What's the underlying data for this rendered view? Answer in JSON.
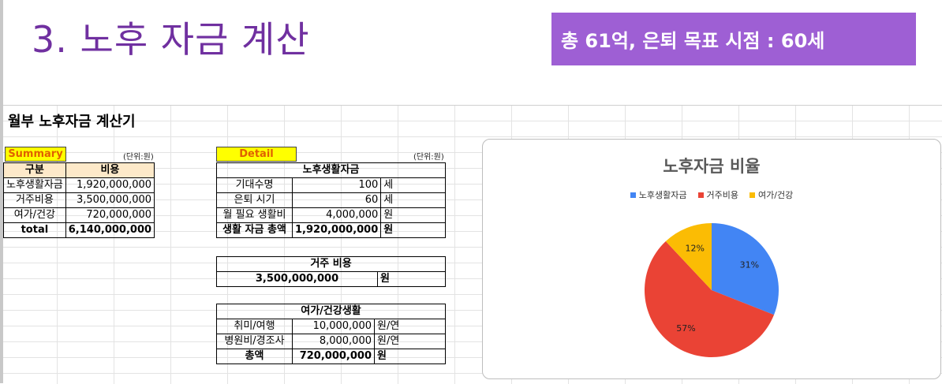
{
  "slide": {
    "title": "3. 노후 자금 계산",
    "banner": "총 61억, 은퇴 목표 시점  : 60세"
  },
  "sheet": {
    "title": "월부 노후자금 계산기"
  },
  "summary": {
    "label": "Summary",
    "unit": "(단위:원)",
    "headers": [
      "구분",
      "비용"
    ],
    "rows": [
      {
        "name": "노후생활자금",
        "value": "1,920,000,000"
      },
      {
        "name": "거주비용",
        "value": "3,500,000,000"
      },
      {
        "name": "여가/건강",
        "value": "720,000,000"
      }
    ],
    "total": {
      "name": "total",
      "value": "6,140,000,000"
    }
  },
  "detail": {
    "label": "Detail",
    "unit": "(단위:원)",
    "living": {
      "header": "노후생활자금",
      "rows": [
        {
          "name": "기대수명",
          "value": "100",
          "unit": "세"
        },
        {
          "name": "은퇴 시기",
          "value": "60",
          "unit": "세"
        },
        {
          "name": "월 필요 생활비",
          "value": "4,000,000",
          "unit": "원"
        },
        {
          "name": "생활 자금 총액",
          "value": "1,920,000,000",
          "unit": "원"
        }
      ]
    },
    "housing": {
      "header": "거주 비용",
      "value": "3,500,000,000",
      "unit": "원"
    },
    "leisure": {
      "header": "여가/건강생활",
      "rows": [
        {
          "name": "취미/여행",
          "value": "10,000,000",
          "unit": "원/연"
        },
        {
          "name": "병원비/경조사",
          "value": "8,000,000",
          "unit": "원/연"
        },
        {
          "name": "총액",
          "value": "720,000,000",
          "unit": "원"
        }
      ]
    }
  },
  "chart_data": {
    "type": "pie",
    "title": "노후자금 비율",
    "legend_position": "top",
    "series": [
      {
        "name": "노후생활자금",
        "value": 31,
        "label": "31%",
        "color": "#4285f4"
      },
      {
        "name": "거주비용",
        "value": 57,
        "label": "57%",
        "color": "#ea4335"
      },
      {
        "name": "여가/건강",
        "value": 12,
        "label": "12%",
        "color": "#fbbc04"
      }
    ]
  }
}
